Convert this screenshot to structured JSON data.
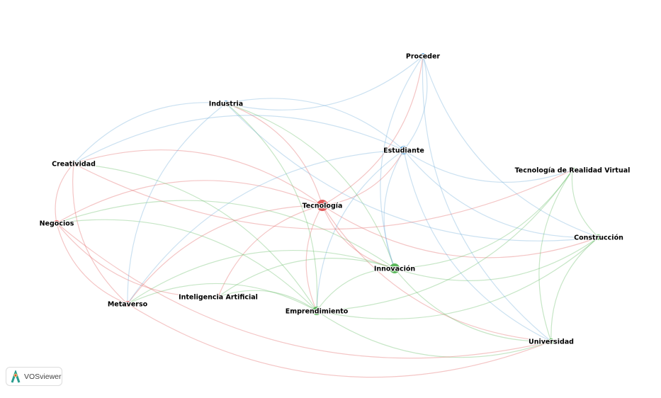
{
  "clusters": {
    "red": "#e05a5a",
    "green": "#5cb85c",
    "blue": "#6aa8d8"
  },
  "nodes": [
    {
      "id": "Tecnología",
      "cluster": "red",
      "weight": 3
    },
    {
      "id": "Estudiante",
      "cluster": "blue",
      "weight": 2
    },
    {
      "id": "Innovación",
      "cluster": "green",
      "weight": 2.5
    },
    {
      "id": "Emprendimiento",
      "cluster": "green",
      "weight": 2
    },
    {
      "id": "Industria",
      "cluster": "blue",
      "weight": 1
    },
    {
      "id": "Proceder",
      "cluster": "blue",
      "weight": 1
    },
    {
      "id": "Creatividad",
      "cluster": "red",
      "weight": 1
    },
    {
      "id": "Negocios",
      "cluster": "red",
      "weight": 1
    },
    {
      "id": "Metaverso",
      "cluster": "red",
      "weight": 1
    },
    {
      "id": "Inteligencia Artificial",
      "cluster": "red",
      "weight": 1
    },
    {
      "id": "Tecnología de Realidad Virtual",
      "cluster": "green",
      "weight": 1
    },
    {
      "id": "Construcción",
      "cluster": "green",
      "weight": 1
    },
    {
      "id": "Universidad",
      "cluster": "green",
      "weight": 1
    }
  ],
  "edges": [
    [
      "Tecnología",
      "Estudiante"
    ],
    [
      "Tecnología",
      "Innovación"
    ],
    [
      "Tecnología",
      "Emprendimiento"
    ],
    [
      "Tecnología",
      "Industria"
    ],
    [
      "Tecnología",
      "Creatividad"
    ],
    [
      "Tecnología",
      "Negocios"
    ],
    [
      "Tecnología",
      "Metaverso"
    ],
    [
      "Tecnología",
      "Inteligencia Artificial"
    ],
    [
      "Tecnología",
      "Universidad"
    ],
    [
      "Tecnología",
      "Construcción"
    ],
    [
      "Tecnología",
      "Proceder"
    ],
    [
      "Estudiante",
      "Innovación"
    ],
    [
      "Estudiante",
      "Emprendimiento"
    ],
    [
      "Estudiante",
      "Industria"
    ],
    [
      "Estudiante",
      "Proceder"
    ],
    [
      "Estudiante",
      "Tecnología de Realidad Virtual"
    ],
    [
      "Estudiante",
      "Construcción"
    ],
    [
      "Estudiante",
      "Universidad"
    ],
    [
      "Estudiante",
      "Creatividad"
    ],
    [
      "Estudiante",
      "Metaverso"
    ],
    [
      "Innovación",
      "Emprendimiento"
    ],
    [
      "Innovación",
      "Tecnología de Realidad Virtual"
    ],
    [
      "Innovación",
      "Construcción"
    ],
    [
      "Innovación",
      "Universidad"
    ],
    [
      "Innovación",
      "Industria"
    ],
    [
      "Innovación",
      "Negocios"
    ],
    [
      "Innovación",
      "Metaverso"
    ],
    [
      "Innovación",
      "Inteligencia Artificial"
    ],
    [
      "Emprendimiento",
      "Tecnología de Realidad Virtual"
    ],
    [
      "Emprendimiento",
      "Construcción"
    ],
    [
      "Emprendimiento",
      "Universidad"
    ],
    [
      "Emprendimiento",
      "Metaverso"
    ],
    [
      "Emprendimiento",
      "Negocios"
    ],
    [
      "Emprendimiento",
      "Creatividad"
    ],
    [
      "Emprendimiento",
      "Industria"
    ],
    [
      "Emprendimiento",
      "Inteligencia Artificial"
    ],
    [
      "Industria",
      "Proceder"
    ],
    [
      "Industria",
      "Metaverso"
    ],
    [
      "Industria",
      "Creatividad"
    ],
    [
      "Industria",
      "Construcción"
    ],
    [
      "Creatividad",
      "Negocios"
    ],
    [
      "Creatividad",
      "Metaverso"
    ],
    [
      "Negocios",
      "Metaverso"
    ],
    [
      "Negocios",
      "Inteligencia Artificial"
    ],
    [
      "Proceder",
      "Construcción"
    ],
    [
      "Proceder",
      "Universidad"
    ],
    [
      "Proceder",
      "Innovación"
    ],
    [
      "Tecnología de Realidad Virtual",
      "Construcción"
    ],
    [
      "Tecnología de Realidad Virtual",
      "Universidad"
    ],
    [
      "Construcción",
      "Universidad"
    ],
    [
      "Metaverso",
      "Universidad"
    ],
    [
      "Negocios",
      "Universidad"
    ],
    [
      "Creatividad",
      "Tecnología de Realidad Virtual"
    ]
  ],
  "logo": {
    "text": "VOSviewer"
  }
}
